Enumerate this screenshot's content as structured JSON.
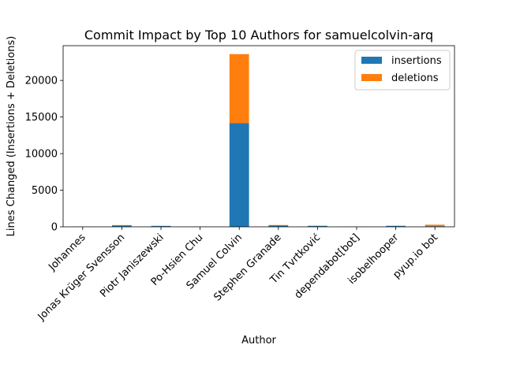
{
  "chart_data": {
    "type": "bar",
    "stacked": true,
    "title": "Commit Impact by Top 10 Authors for samuelcolvin-arq",
    "xlabel": "Author",
    "ylabel": "Lines Changed (Insertions + Deletions)",
    "categories": [
      "Johannes",
      "Jonas Krüger Svensson",
      "Piotr Janiszewski",
      "Po-Hsien Chu",
      "Samuel Colvin",
      "Stephen Granade",
      "Tin Tvrtković",
      "dependabot[bot]",
      "isobelhooper",
      "pyup.io bot"
    ],
    "series": [
      {
        "name": "insertions",
        "color": "#1f77b4",
        "values": [
          10,
          200,
          110,
          20,
          14150,
          200,
          130,
          10,
          130,
          90
        ]
      },
      {
        "name": "deletions",
        "color": "#ff7f0e",
        "values": [
          5,
          30,
          25,
          5,
          9450,
          40,
          30,
          5,
          20,
          200
        ]
      }
    ],
    "ylim": [
      0,
      24750
    ],
    "yticks": [
      0,
      5000,
      10000,
      15000,
      20000
    ],
    "grid": false,
    "legend_position": "top-right"
  }
}
